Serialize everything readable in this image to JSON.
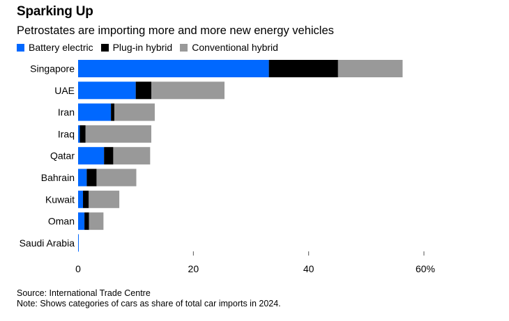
{
  "header": {
    "title": "Sparking Up",
    "subtitle": "Petrostates are importing more and more new energy vehicles"
  },
  "footer": {
    "source": "Source: International Trade Centre",
    "note": "Note: Shows categories of cars as share of total car imports in 2024."
  },
  "chart_data": {
    "type": "bar",
    "orientation": "horizontal",
    "stacked": true,
    "title": "Sparking Up",
    "subtitle": "Petrostates are importing more and more new energy vehicles",
    "xlabel": "",
    "ylabel": "",
    "xlim": [
      0,
      60
    ],
    "x_ticks": [
      0,
      20,
      40,
      60
    ],
    "x_tick_labels": [
      "0",
      "20",
      "40",
      "60%"
    ],
    "grid": false,
    "legend_position": "top-left",
    "categories": [
      "Singapore",
      "UAE",
      "Iran",
      "Iraq",
      "Qatar",
      "Bahrain",
      "Kuwait",
      "Oman",
      "Saudi Arabia"
    ],
    "series": [
      {
        "name": "Battery electric",
        "color": "#0068ff",
        "values": [
          33.1,
          10.0,
          5.7,
          0.3,
          4.5,
          1.5,
          0.85,
          1.1,
          0.1
        ]
      },
      {
        "name": "Plug-in hybrid",
        "color": "#000000",
        "values": [
          12.0,
          2.7,
          0.6,
          1.0,
          1.6,
          1.7,
          1.0,
          0.8,
          0.0
        ]
      },
      {
        "name": "Conventional hybrid",
        "color": "#999999",
        "values": [
          11.2,
          12.7,
          7.0,
          11.4,
          6.4,
          6.9,
          5.3,
          2.5,
          0.0
        ]
      }
    ]
  }
}
